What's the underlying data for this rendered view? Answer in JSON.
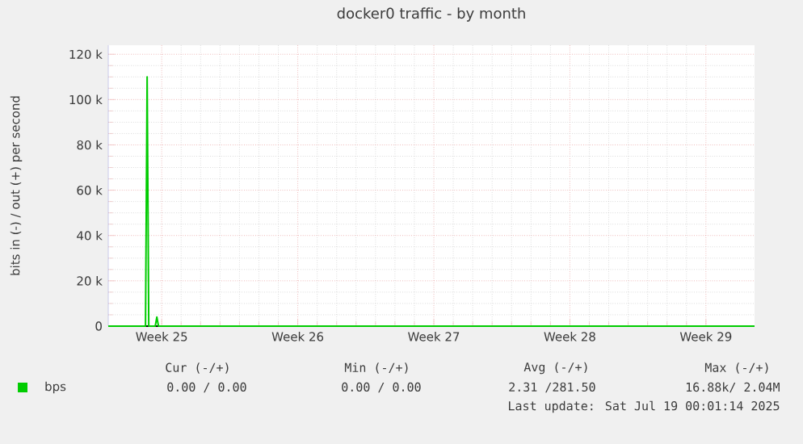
{
  "chart_data": {
    "type": "line",
    "title": "docker0 traffic - by month",
    "ylabel": "bits in (-) / out (+) per second",
    "series": [
      {
        "name": "bps",
        "color": "#00cc00",
        "x": [
          "2025-06-15T18:00",
          "2025-06-17T16:00",
          "2025-06-17T18:00",
          "2025-06-17T20:00",
          "2025-06-18T04:00",
          "2025-06-18T06:00",
          "2025-06-18T08:00",
          "2025-07-19T00:00"
        ],
        "values": [
          0,
          0,
          110000,
          0,
          0,
          4000,
          0,
          0
        ]
      }
    ],
    "xlim": [
      "2025-06-15T18:00",
      "2025-07-19T00:00"
    ],
    "xticks": [
      {
        "value": "2025-06-18T12:00",
        "label": "Week 25"
      },
      {
        "value": "2025-06-25T12:00",
        "label": "Week 26"
      },
      {
        "value": "2025-07-02T12:00",
        "label": "Week 27"
      },
      {
        "value": "2025-07-09T12:00",
        "label": "Week 28"
      },
      {
        "value": "2025-07-16T12:00",
        "label": "Week 29"
      }
    ],
    "ylim": [
      0,
      124000
    ],
    "yticks": [
      {
        "value": 0,
        "label": "0"
      },
      {
        "value": 20000,
        "label": "20 k"
      },
      {
        "value": 40000,
        "label": "40 k"
      },
      {
        "value": 60000,
        "label": "60 k"
      },
      {
        "value": 80000,
        "label": "80 k"
      },
      {
        "value": 100000,
        "label": "100 k"
      },
      {
        "value": 120000,
        "label": "120 k"
      }
    ],
    "grid": true,
    "legend": "bottom left",
    "annotations": [
      "Cur (-/+)",
      "Min (-/+)",
      "Avg (-/+)",
      "Max (-/+)",
      "0.00 /  0.00",
      "0.00 /  0.00",
      "2.31 /281.50",
      "16.88k/  2.04M",
      "Last update: Sat Jul 19 00:01:14 2025"
    ]
  }
}
